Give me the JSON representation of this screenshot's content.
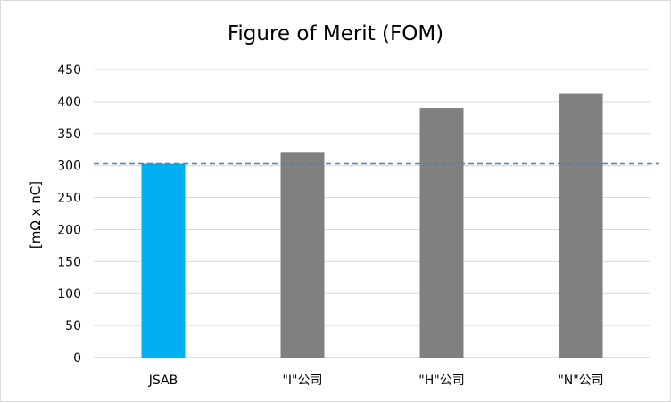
{
  "chart_data": {
    "type": "bar",
    "title": "Figure of Merit (FOM)",
    "xlabel": "",
    "ylabel": "[mΩ x nC]",
    "categories": [
      "JSAB",
      "\"I\"公司",
      "\"H\"公司",
      "\"N\"公司"
    ],
    "values": [
      303,
      320,
      390,
      413
    ],
    "colors": [
      "#00b0f0",
      "#808080",
      "#808080",
      "#808080"
    ],
    "ylim": [
      0,
      450
    ],
    "yticks": [
      0,
      50,
      100,
      150,
      200,
      250,
      300,
      350,
      400,
      450
    ],
    "grid": true,
    "reference_line": {
      "value": 303,
      "color": "#4a7fc1",
      "style": "dashed"
    }
  }
}
